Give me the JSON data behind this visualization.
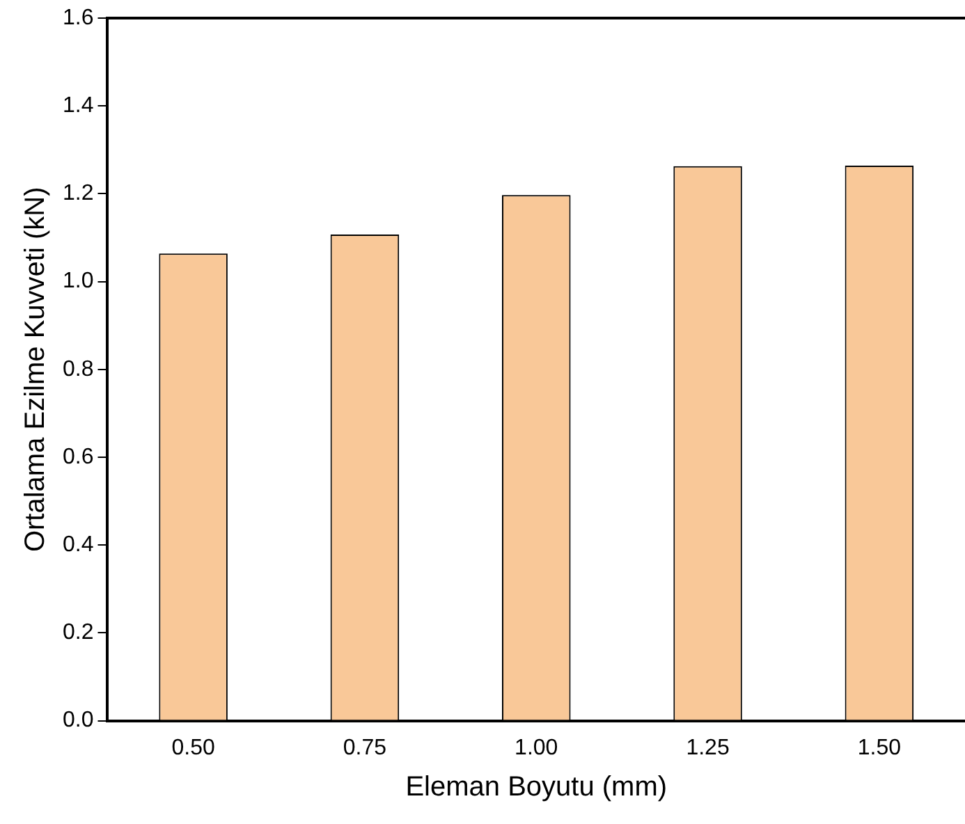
{
  "chart_data": {
    "type": "bar",
    "xlabel": "Eleman Boyutu (mm)",
    "ylabel": "Ortalama Ezilme Kuvveti (kN)",
    "categories": [
      "0.50",
      "0.75",
      "1.00",
      "1.25",
      "1.50"
    ],
    "values": [
      1.064,
      1.107,
      1.197,
      1.263,
      1.264
    ],
    "color": "#f9c898",
    "ylim": [
      0,
      1.6
    ],
    "yticks": [
      {
        "value": 0,
        "label": "0.0"
      },
      0.2,
      0.4,
      0.6,
      0.8,
      {
        "value": 1,
        "label": "1.0"
      },
      1.2,
      1.4,
      1.6
    ],
    "grid": false,
    "legend": false
  }
}
